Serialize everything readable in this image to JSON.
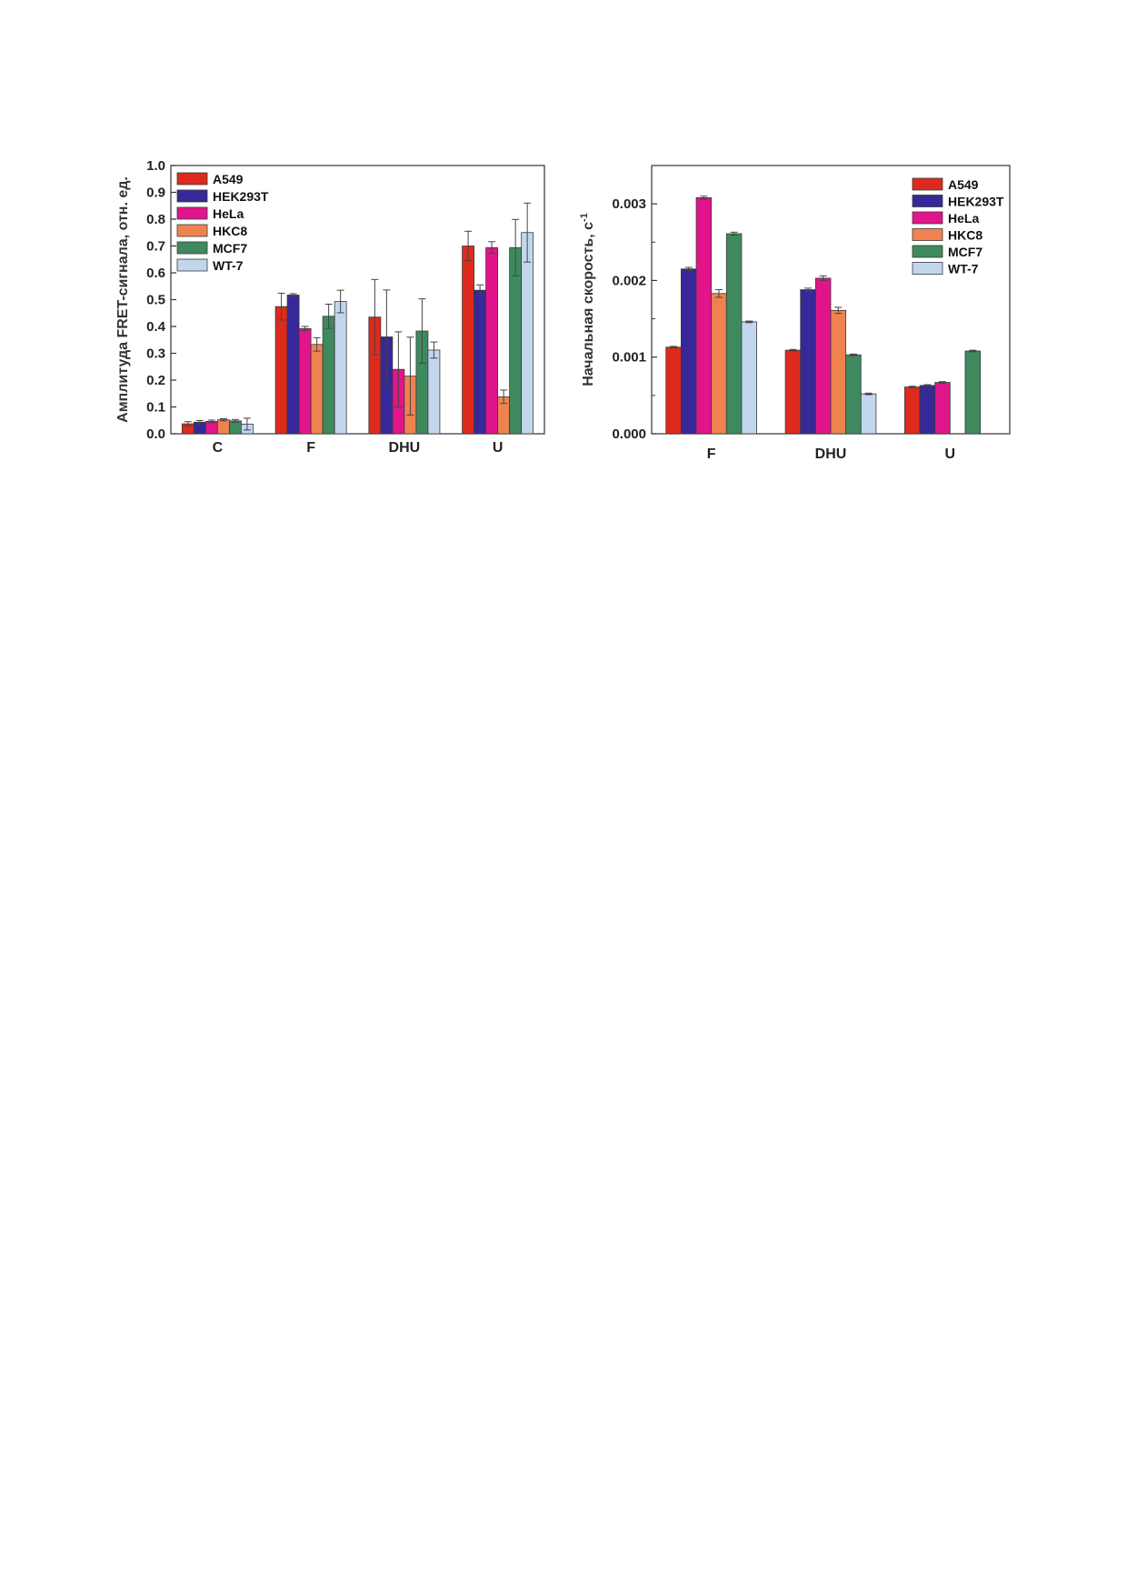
{
  "chart_data": [
    {
      "type": "bar",
      "categories": [
        "C",
        "F",
        "DHU",
        "U"
      ],
      "ylabel": "Амплитуда FRET-сигнала, отн. ед.",
      "ylim": [
        0,
        1.0
      ],
      "yticks": [
        0.0,
        0.1,
        0.2,
        0.3,
        0.4,
        0.5,
        0.6,
        0.7,
        0.8,
        0.9,
        1.0
      ],
      "tick_decimals": 1,
      "legend_position": "top-left",
      "series": [
        {
          "name": "A549",
          "color": "#de2a1c",
          "values": [
            0.037,
            0.474,
            0.435,
            0.7
          ],
          "errors": [
            0.008,
            0.05,
            0.14,
            0.055
          ]
        },
        {
          "name": "HEK293T",
          "color": "#37289a",
          "values": [
            0.043,
            0.517,
            0.361,
            0.535
          ],
          "errors": [
            0.006,
            0.005,
            0.175,
            0.02
          ]
        },
        {
          "name": "HeLa",
          "color": "#e2148b",
          "values": [
            0.046,
            0.392,
            0.24,
            0.694
          ],
          "errors": [
            0.005,
            0.008,
            0.14,
            0.022
          ]
        },
        {
          "name": "HKC8",
          "color": "#ef8350",
          "values": [
            0.052,
            0.333,
            0.215,
            0.138
          ],
          "errors": [
            0.004,
            0.025,
            0.145,
            0.025
          ]
        },
        {
          "name": "MCF7",
          "color": "#3e8a5e",
          "values": [
            0.048,
            0.438,
            0.383,
            0.694
          ],
          "errors": [
            0.005,
            0.045,
            0.12,
            0.105
          ]
        },
        {
          "name": "WT-7",
          "color": "#c2d6ee",
          "values": [
            0.036,
            0.493,
            0.312,
            0.75
          ],
          "errors": [
            0.022,
            0.042,
            0.03,
            0.11
          ]
        }
      ]
    },
    {
      "type": "bar",
      "categories": [
        "F",
        "DHU",
        "U"
      ],
      "ylabel": "Начальная скорость, с",
      "ylabel_sup": "-1",
      "ylim": [
        0,
        0.0035
      ],
      "yticks": [
        0.0,
        0.001,
        0.002,
        0.003
      ],
      "minor_yticks": [
        0.0005,
        0.0015,
        0.0025
      ],
      "tick_decimals": 3,
      "legend_position": "top-right",
      "series": [
        {
          "name": "A549",
          "color": "#de2a1c",
          "values": [
            0.00113,
            0.00109,
            0.00061
          ],
          "errors": [
            1e-05,
            1e-05,
            1e-05
          ]
        },
        {
          "name": "HEK293T",
          "color": "#37289a",
          "values": [
            0.00215,
            0.00188,
            0.00063
          ],
          "errors": [
            2e-05,
            2e-05,
            1e-05
          ]
        },
        {
          "name": "HeLa",
          "color": "#e2148b",
          "values": [
            0.00308,
            0.00203,
            0.00067
          ],
          "errors": [
            2e-05,
            3e-05,
            1e-05
          ]
        },
        {
          "name": "HKC8",
          "color": "#ef8350",
          "values": [
            0.00183,
            0.00161,
            null
          ],
          "errors": [
            5e-05,
            4e-05,
            null
          ]
        },
        {
          "name": "MCF7",
          "color": "#3e8a5e",
          "values": [
            0.00261,
            0.00103,
            0.00108
          ],
          "errors": [
            2e-05,
            1e-05,
            1e-05
          ]
        },
        {
          "name": "WT-7",
          "color": "#c2d6ee",
          "values": [
            0.00146,
            0.00052,
            null
          ],
          "errors": [
            1e-05,
            1e-05,
            null
          ]
        }
      ]
    }
  ]
}
